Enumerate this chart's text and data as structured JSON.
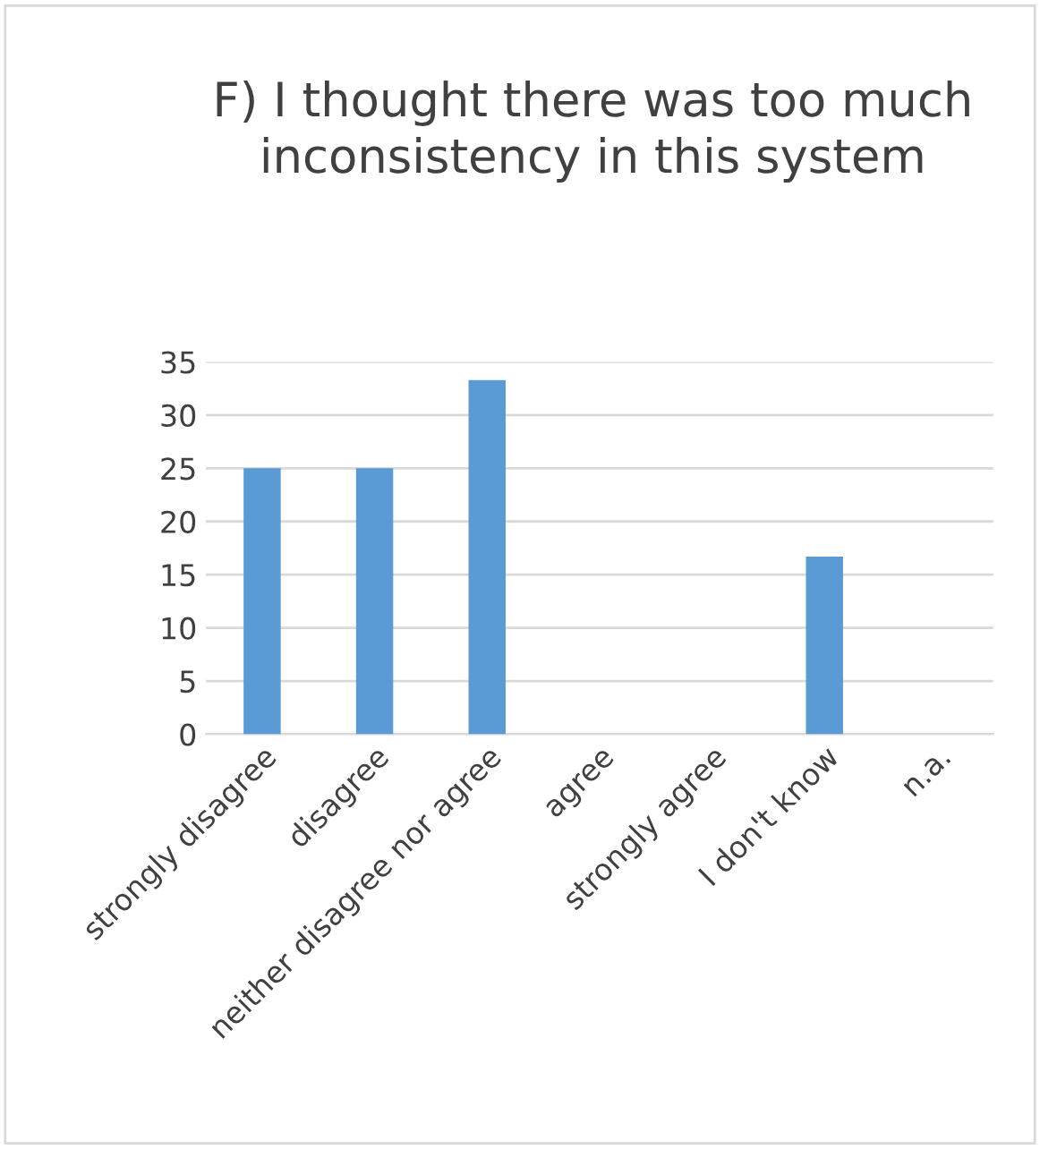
{
  "chart_data": {
    "type": "bar",
    "title": "F) I thought there was too much inconsistency in this system",
    "categories": [
      "strongly disagree",
      "disagree",
      "neither disagree nor agree",
      "agree",
      "strongly agree",
      "I don't know",
      "n.a."
    ],
    "values": [
      25,
      25,
      33.3,
      0,
      0,
      16.7,
      0
    ],
    "color": "#5b9bd5",
    "ylim": [
      0,
      35
    ],
    "yticks": [
      0,
      5,
      10,
      15,
      20,
      25,
      30,
      35
    ],
    "grid": "y",
    "legend": false
  }
}
